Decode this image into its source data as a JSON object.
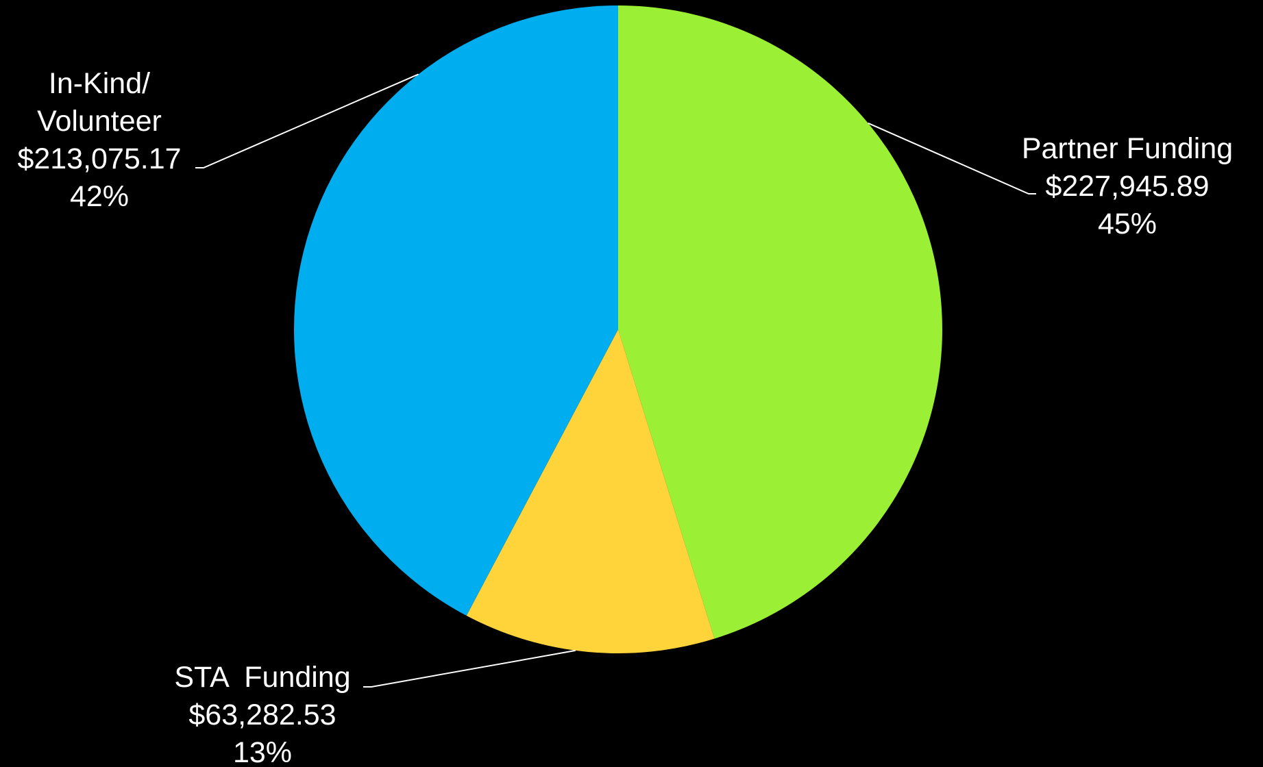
{
  "chart_data": {
    "type": "pie",
    "title": "",
    "slices": [
      {
        "name": "Partner Funding",
        "value": 227945.89,
        "value_label": "$227,945.89",
        "percent_label": "45%",
        "color": "#9BEF34"
      },
      {
        "name": "STA  Funding",
        "value": 63282.53,
        "value_label": "$63,282.53",
        "percent_label": "13%",
        "color": "#FFD43B"
      },
      {
        "name": "In-Kind/ Volunteer",
        "name_lines": [
          "In-Kind/",
          "Volunteer"
        ],
        "value": 213075.17,
        "value_label": "$213,075.17",
        "percent_label": "42%",
        "color": "#00AEEF"
      }
    ],
    "start_angle": "12 o'clock",
    "direction": "clockwise",
    "legend": "none",
    "background": "#000000",
    "label_color": "#FFFFFF"
  }
}
